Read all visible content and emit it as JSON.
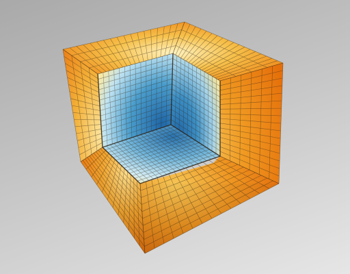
{
  "scene": {
    "subject": "adaptive-mesh-cube",
    "colors": {
      "background_top": "#a9a9a9",
      "background_bottom": "#e6e6e6",
      "hot": "#f08a12",
      "warm": "#f6c04a",
      "pale": "#fff3c0",
      "cool_light": "#bfe3f2",
      "cool": "#3a8ec4",
      "cool_dark": "#1f67a8",
      "mesh_line": "#3a2a18"
    }
  }
}
